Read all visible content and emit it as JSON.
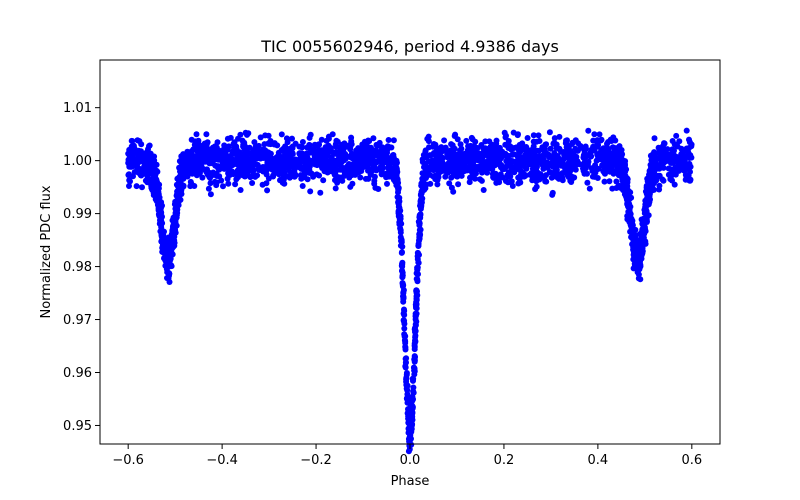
{
  "chart_data": {
    "type": "scatter",
    "title": "TIC 0055602946, period 4.9386 days",
    "xlabel": "Phase",
    "ylabel": "Normalized PDC flux",
    "xlim": [
      -0.66,
      0.66
    ],
    "ylim": [
      0.9465,
      1.019
    ],
    "x_ticks": [
      -0.6,
      -0.4,
      -0.2,
      0.0,
      0.2,
      0.4,
      0.6
    ],
    "x_tick_labels": [
      "−0.6",
      "−0.4",
      "−0.2",
      "0.0",
      "0.2",
      "0.4",
      "0.6"
    ],
    "y_ticks": [
      0.95,
      0.96,
      0.97,
      0.98,
      0.99,
      1.0,
      1.01
    ],
    "y_tick_labels": [
      "0.95",
      "0.96",
      "0.97",
      "0.98",
      "0.99",
      "1.00",
      "1.01"
    ],
    "grid": false,
    "marker_color": "#0000ff",
    "phase_range": [
      -0.6,
      0.6
    ],
    "baseline_flux": 1.0,
    "scatter_amplitude": 0.0035,
    "primary_eclipse": {
      "center": 0.0,
      "min_flux": 0.9495,
      "half_width": 0.018
    },
    "secondary_eclipses": [
      {
        "center": -0.515,
        "min_flux": 0.9815,
        "half_width": 0.022
      },
      {
        "center": 0.485,
        "min_flux": 0.9815,
        "half_width": 0.022
      }
    ]
  }
}
